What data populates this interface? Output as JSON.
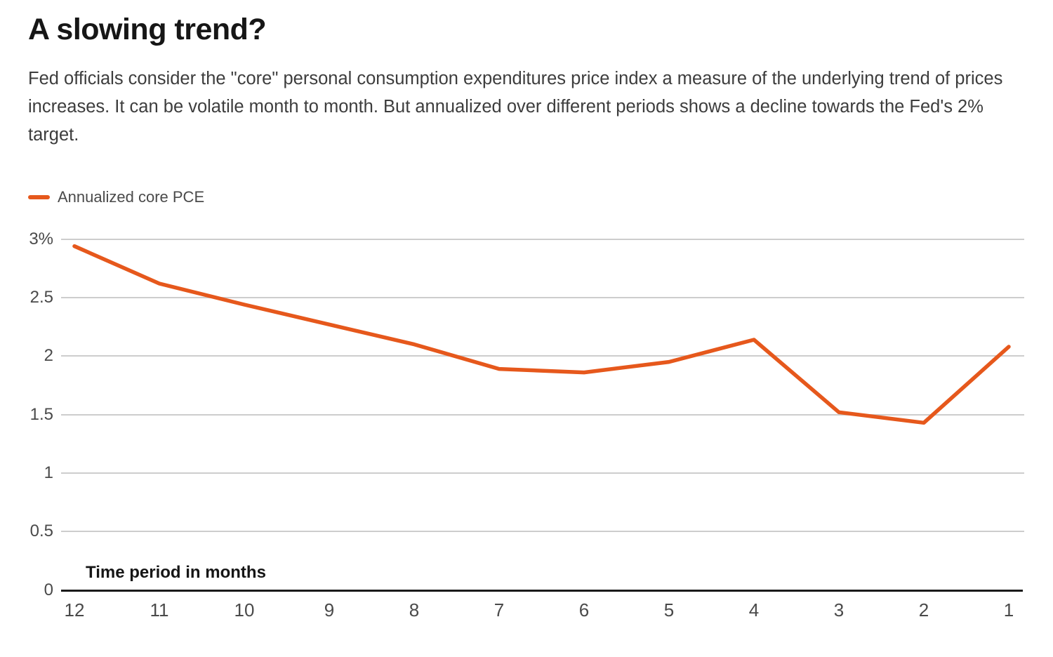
{
  "header": {
    "title": "A slowing trend?",
    "description": "Fed officials consider the \"core\" personal consumption expenditures price index a measure of the underlying trend of prices increases. It can be volatile month to month. But annualized over different periods shows a decline towards the Fed's 2% target."
  },
  "legend": {
    "label": "Annualized core PCE",
    "color": "#e6581c"
  },
  "colors": {
    "line": "#e6581c",
    "gridline": "#cdcdcd",
    "axis": "#1a1a1a",
    "tick_text": "#4a4a4a"
  },
  "chart_data": {
    "type": "line",
    "title": "A slowing trend?",
    "categories": [
      "12",
      "11",
      "10",
      "9",
      "8",
      "7",
      "6",
      "5",
      "4",
      "3",
      "2",
      "1"
    ],
    "series": [
      {
        "name": "Annualized core PCE",
        "color": "#e6581c",
        "values": [
          2.94,
          2.62,
          2.44,
          2.27,
          2.1,
          1.89,
          1.86,
          1.95,
          2.14,
          1.52,
          1.43,
          2.08
        ]
      }
    ],
    "xlabel": "Time period in months",
    "ylabel": "",
    "ylim": [
      0,
      3
    ],
    "yticks": [
      {
        "value": 3,
        "label": "3%"
      },
      {
        "value": 2.5,
        "label": "2.5"
      },
      {
        "value": 2,
        "label": "2"
      },
      {
        "value": 1.5,
        "label": "1.5"
      },
      {
        "value": 1,
        "label": "1"
      },
      {
        "value": 0.5,
        "label": "0.5"
      },
      {
        "value": 0,
        "label": "0"
      }
    ],
    "grid": "horizontal",
    "legend_position": "top-left"
  }
}
